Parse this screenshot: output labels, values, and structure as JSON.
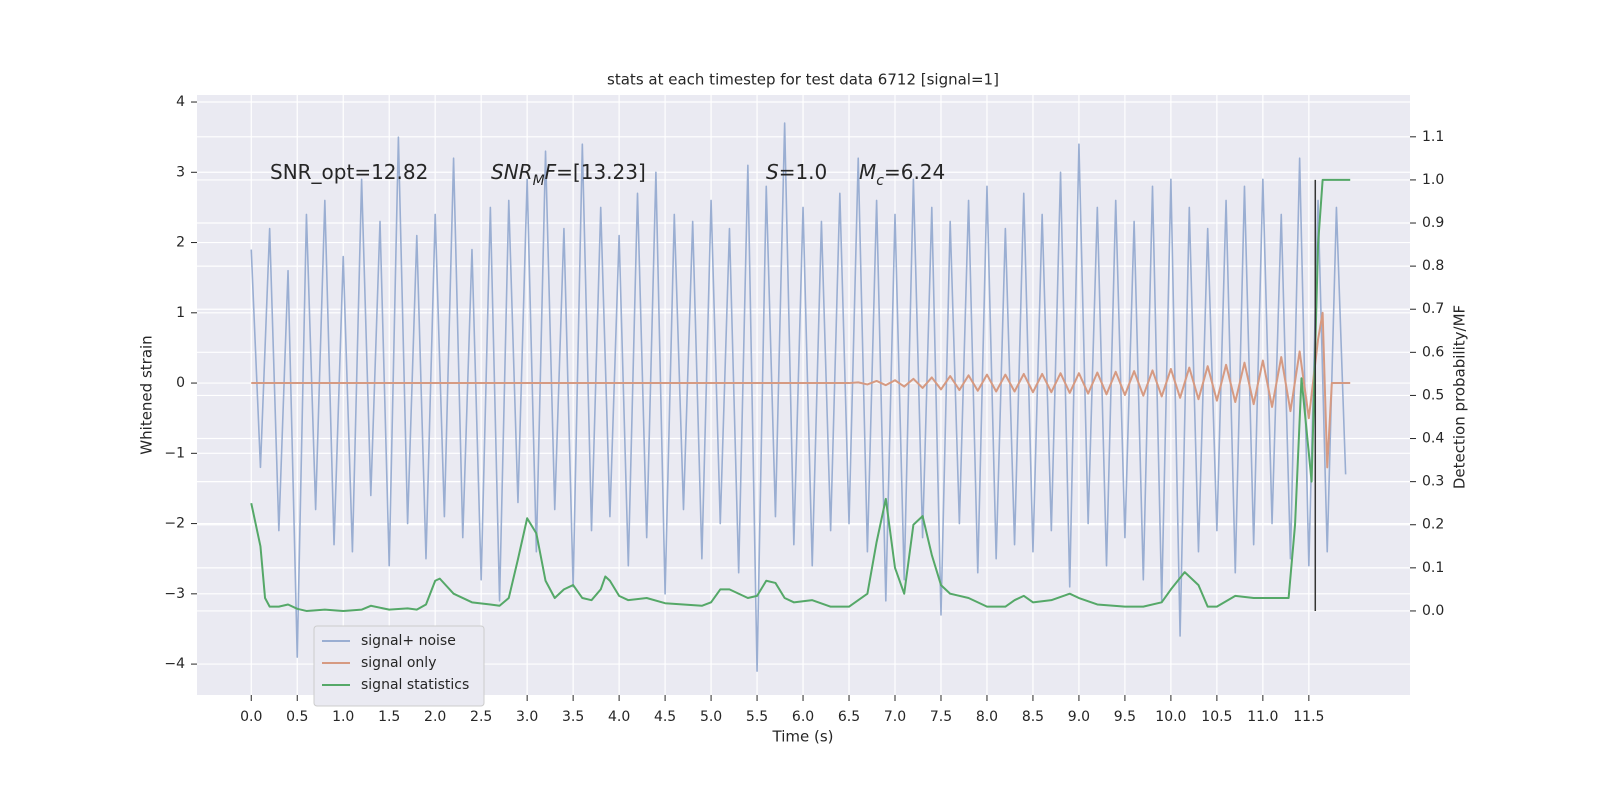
{
  "chart_data": {
    "type": "line",
    "title": "stats at each timestep for test data 6712 [signal=1]",
    "x_label": "Time (s)",
    "y_label": "Whitened strain",
    "y2_label": "Detection probability/MF",
    "xlim": [
      -0.59,
      12.6
    ],
    "ylim": [
      -4.44,
      4.1
    ],
    "y2lim": [
      -0.195,
      1.197
    ],
    "xticks": [
      {
        "value": 0,
        "label": "0.0"
      },
      {
        "value": 0.5,
        "label": "0.5"
      },
      {
        "value": 1,
        "label": "1.0"
      },
      {
        "value": 1.5,
        "label": "1.5"
      },
      {
        "value": 2,
        "label": "2.0"
      },
      {
        "value": 2.5,
        "label": "2.5"
      },
      {
        "value": 3,
        "label": "3.0"
      },
      {
        "value": 3.5,
        "label": "3.5"
      },
      {
        "value": 4,
        "label": "4.0"
      },
      {
        "value": 4.5,
        "label": "4.5"
      },
      {
        "value": 5,
        "label": "5.0"
      },
      {
        "value": 5.5,
        "label": "5.5"
      },
      {
        "value": 6,
        "label": "6.0"
      },
      {
        "value": 6.5,
        "label": "6.5"
      },
      {
        "value": 7,
        "label": "7.0"
      },
      {
        "value": 7.5,
        "label": "7.5"
      },
      {
        "value": 8,
        "label": "8.0"
      },
      {
        "value": 8.5,
        "label": "8.5"
      },
      {
        "value": 9,
        "label": "9.0"
      },
      {
        "value": 9.5,
        "label": "9.5"
      },
      {
        "value": 10,
        "label": "10.0"
      },
      {
        "value": 10.5,
        "label": "10.5"
      },
      {
        "value": 11,
        "label": "11.0"
      },
      {
        "value": 11.5,
        "label": "11.5"
      }
    ],
    "yticks": [
      {
        "value": -4,
        "label": "−4"
      },
      {
        "value": -3,
        "label": "−3"
      },
      {
        "value": -2,
        "label": "−2"
      },
      {
        "value": -1,
        "label": "−1"
      },
      0,
      1,
      2,
      3,
      4
    ],
    "y2ticks": [
      {
        "value": 0,
        "label": "0.0"
      },
      {
        "value": 0.1,
        "label": "0.1"
      },
      {
        "value": 0.2,
        "label": "0.2"
      },
      {
        "value": 0.3,
        "label": "0.3"
      },
      {
        "value": 0.4,
        "label": "0.4"
      },
      {
        "value": 0.5,
        "label": "0.5"
      },
      {
        "value": 0.6,
        "label": "0.6"
      },
      {
        "value": 0.7,
        "label": "0.7"
      },
      {
        "value": 0.8,
        "label": "0.8"
      },
      {
        "value": 0.9,
        "label": "0.9"
      },
      {
        "value": 1,
        "label": "1.0"
      },
      {
        "value": 1.1,
        "label": "1.1"
      }
    ],
    "grid": true,
    "legend": "lower left",
    "annotations": [
      {
        "parts": [
          {
            "text": "SNR_opt=12.82"
          }
        ]
      },
      {
        "parts": [
          {
            "text": "SNR",
            "italic": true
          },
          {
            "text": "M",
            "italic": true,
            "sub": true
          },
          {
            "text": "F",
            "italic": true
          },
          {
            "text": "=[13.23]"
          }
        ]
      },
      {
        "parts": [
          {
            "text": "S",
            "italic": true
          },
          {
            "text": "=1.0"
          }
        ]
      },
      {
        "parts": [
          {
            "text": "M",
            "italic": true
          },
          {
            "text": "c",
            "italic": true,
            "sub": true
          },
          {
            "text": "=6.24"
          }
        ]
      }
    ],
    "vline": {
      "x": 11.57,
      "y2": [
        0,
        1
      ],
      "color": "#333333"
    },
    "series": [
      {
        "name": "signal+ noise",
        "color": "#9aaed2",
        "axis": "y",
        "x": [
          0.0,
          0.1,
          0.2,
          0.3,
          0.4,
          0.5,
          0.6,
          0.7,
          0.8,
          0.9,
          1.0,
          1.1,
          1.2,
          1.3,
          1.4,
          1.5,
          1.6,
          1.7,
          1.8,
          1.9,
          2.0,
          2.1,
          2.2,
          2.3,
          2.4,
          2.5,
          2.6,
          2.7,
          2.8,
          2.9,
          3.0,
          3.1,
          3.2,
          3.3,
          3.4,
          3.5,
          3.6,
          3.7,
          3.8,
          3.9,
          4.0,
          4.1,
          4.2,
          4.3,
          4.4,
          4.5,
          4.6,
          4.7,
          4.8,
          4.9,
          5.0,
          5.1,
          5.2,
          5.3,
          5.4,
          5.5,
          5.6,
          5.7,
          5.8,
          5.9,
          6.0,
          6.1,
          6.2,
          6.3,
          6.4,
          6.5,
          6.6,
          6.7,
          6.8,
          6.9,
          7.0,
          7.1,
          7.2,
          7.3,
          7.4,
          7.5,
          7.6,
          7.7,
          7.8,
          7.9,
          8.0,
          8.1,
          8.2,
          8.3,
          8.4,
          8.5,
          8.6,
          8.7,
          8.8,
          8.9,
          9.0,
          9.1,
          9.2,
          9.3,
          9.4,
          9.5,
          9.6,
          9.7,
          9.8,
          9.9,
          10.0,
          10.1,
          10.2,
          10.3,
          10.4,
          10.5,
          10.6,
          10.7,
          10.8,
          10.9,
          11.0,
          11.1,
          11.2,
          11.3,
          11.4,
          11.5,
          11.6,
          11.7,
          11.8,
          11.9
        ],
        "values": [
          1.9,
          -1.2,
          2.2,
          -2.1,
          1.6,
          -3.9,
          2.4,
          -1.8,
          2.6,
          -2.3,
          1.8,
          -2.4,
          2.9,
          -1.6,
          2.3,
          -2.6,
          3.5,
          -2.0,
          2.1,
          -2.5,
          2.4,
          -1.9,
          3.2,
          -2.2,
          1.9,
          -2.8,
          2.5,
          -3.1,
          2.6,
          -1.7,
          2.9,
          -2.4,
          3.3,
          -1.8,
          2.2,
          -2.9,
          3.4,
          -2.1,
          2.5,
          -1.9,
          2.1,
          -2.6,
          2.7,
          -2.2,
          3.0,
          -3.0,
          2.4,
          -1.8,
          2.3,
          -2.5,
          2.6,
          -2.0,
          2.2,
          -2.7,
          3.1,
          -4.1,
          2.8,
          -1.9,
          3.7,
          -2.3,
          2.5,
          -2.6,
          2.3,
          -2.1,
          2.7,
          -2.0,
          3.2,
          -2.4,
          2.6,
          -3.1,
          2.4,
          -2.8,
          2.9,
          -2.2,
          2.5,
          -3.3,
          2.3,
          -2.0,
          2.6,
          -2.7,
          2.8,
          -2.5,
          2.2,
          -2.3,
          2.7,
          -2.4,
          2.4,
          -2.1,
          3.0,
          -2.9,
          3.4,
          -2.0,
          2.5,
          -2.6,
          2.6,
          -2.2,
          2.3,
          -2.8,
          2.8,
          -3.1,
          2.9,
          -3.6,
          2.5,
          -2.4,
          2.2,
          -2.1,
          2.6,
          -2.7,
          2.8,
          -2.3,
          2.9,
          -2.0,
          2.4,
          -2.5,
          3.2,
          -2.6,
          2.6,
          -2.4,
          2.5,
          -1.3
        ]
      },
      {
        "name": "signal only",
        "color": "#d69a82",
        "axis": "y",
        "x": [
          0,
          6.5,
          6.6,
          6.7,
          6.8,
          6.9,
          7.0,
          7.1,
          7.2,
          7.3,
          7.4,
          7.5,
          7.6,
          7.7,
          7.8,
          7.9,
          8.0,
          8.1,
          8.2,
          8.3,
          8.4,
          8.5,
          8.6,
          8.7,
          8.8,
          8.9,
          9.0,
          9.1,
          9.2,
          9.3,
          9.4,
          9.5,
          9.6,
          9.7,
          9.8,
          9.9,
          10.0,
          10.1,
          10.2,
          10.3,
          10.4,
          10.5,
          10.6,
          10.7,
          10.8,
          10.9,
          11.0,
          11.1,
          11.2,
          11.3,
          11.4,
          11.5,
          11.6,
          11.65,
          11.7,
          11.75,
          11.95
        ],
        "values": [
          0,
          0,
          0.01,
          -0.02,
          0.03,
          -0.03,
          0.04,
          -0.05,
          0.06,
          -0.07,
          0.08,
          -0.09,
          0.1,
          -0.1,
          0.11,
          -0.11,
          0.12,
          -0.12,
          0.12,
          -0.12,
          0.13,
          -0.13,
          0.13,
          -0.13,
          0.14,
          -0.14,
          0.14,
          -0.15,
          0.15,
          -0.16,
          0.16,
          -0.17,
          0.17,
          -0.18,
          0.18,
          -0.19,
          0.2,
          -0.21,
          0.22,
          -0.23,
          0.24,
          -0.25,
          0.26,
          -0.27,
          0.29,
          -0.3,
          0.32,
          -0.34,
          0.37,
          -0.4,
          0.45,
          -0.5,
          0.62,
          1.0,
          -1.2,
          0,
          0
        ]
      },
      {
        "name": "signal statistics",
        "color": "#55a868",
        "axis": "y2",
        "x": [
          0.0,
          0.1,
          0.15,
          0.2,
          0.3,
          0.4,
          0.5,
          0.6,
          0.8,
          1.0,
          1.2,
          1.3,
          1.5,
          1.7,
          1.8,
          1.9,
          2.0,
          2.05,
          2.2,
          2.4,
          2.6,
          2.7,
          2.8,
          2.9,
          3.0,
          3.1,
          3.2,
          3.3,
          3.4,
          3.5,
          3.6,
          3.7,
          3.8,
          3.85,
          3.9,
          4.0,
          4.1,
          4.3,
          4.5,
          4.7,
          4.9,
          5.0,
          5.1,
          5.2,
          5.4,
          5.5,
          5.6,
          5.7,
          5.8,
          5.9,
          6.1,
          6.3,
          6.5,
          6.7,
          6.8,
          6.9,
          7.0,
          7.1,
          7.2,
          7.3,
          7.4,
          7.5,
          7.6,
          7.8,
          8.0,
          8.2,
          8.3,
          8.4,
          8.5,
          8.7,
          8.9,
          9.0,
          9.2,
          9.5,
          9.7,
          9.9,
          10.0,
          10.15,
          10.3,
          10.4,
          10.5,
          10.7,
          10.9,
          11.1,
          11.28,
          11.35,
          11.42,
          11.53,
          11.6,
          11.65,
          11.75,
          11.95
        ],
        "values": [
          0.25,
          0.15,
          0.03,
          0.01,
          0.01,
          0.015,
          0.005,
          0.0,
          0.003,
          0.0,
          0.003,
          0.012,
          0.003,
          0.006,
          0.003,
          0.015,
          0.07,
          0.075,
          0.04,
          0.02,
          0.015,
          0.012,
          0.03,
          0.12,
          0.215,
          0.18,
          0.07,
          0.03,
          0.05,
          0.06,
          0.03,
          0.025,
          0.05,
          0.08,
          0.07,
          0.035,
          0.025,
          0.03,
          0.018,
          0.015,
          0.012,
          0.02,
          0.05,
          0.05,
          0.03,
          0.035,
          0.07,
          0.065,
          0.03,
          0.02,
          0.025,
          0.01,
          0.01,
          0.04,
          0.16,
          0.26,
          0.1,
          0.04,
          0.2,
          0.22,
          0.13,
          0.06,
          0.04,
          0.03,
          0.01,
          0.01,
          0.025,
          0.035,
          0.02,
          0.025,
          0.04,
          0.03,
          0.015,
          0.01,
          0.01,
          0.02,
          0.05,
          0.09,
          0.06,
          0.01,
          0.01,
          0.035,
          0.03,
          0.03,
          0.03,
          0.2,
          0.54,
          0.3,
          0.85,
          1.0,
          1.0,
          1.0
        ]
      }
    ]
  }
}
